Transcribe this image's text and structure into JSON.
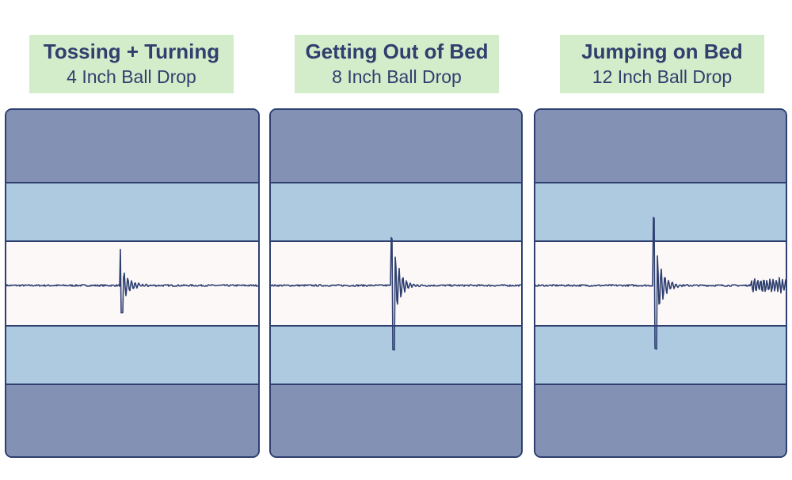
{
  "colors": {
    "label_bg": "#d3ecca",
    "label_text": "#2f3f6e",
    "outer_layer": "#8391b5",
    "comfort_layer": "#adcae0",
    "center_layer": "#fcf8f8",
    "outline": "#2e3f70",
    "trace": "#2e3f70"
  },
  "chart_data": [
    {
      "type": "line",
      "title": "Tossing + Turning",
      "subtitle": "4 Inch Ball Drop",
      "impulse": {
        "position": 0.45,
        "peak_up": 0.86,
        "peak_down": -0.68,
        "decay": 0.11,
        "tail_noise": 0.02
      },
      "secondary_event": null
    },
    {
      "type": "line",
      "title": "Getting Out of Bed",
      "subtitle": "8 Inch Ball Drop",
      "impulse": {
        "position": 0.48,
        "peak_up": 1.15,
        "peak_down": -1.55,
        "decay": 0.13,
        "tail_noise": 0.02
      },
      "secondary_event": null
    },
    {
      "type": "line",
      "title": "Jumping on Bed",
      "subtitle": "12 Inch Ball Drop",
      "impulse": {
        "position": 0.47,
        "peak_up": 1.65,
        "peak_down": -1.55,
        "decay": 0.12,
        "tail_noise": 0.02
      },
      "secondary_event": {
        "position": 0.86,
        "amplitude": 0.18
      }
    }
  ]
}
